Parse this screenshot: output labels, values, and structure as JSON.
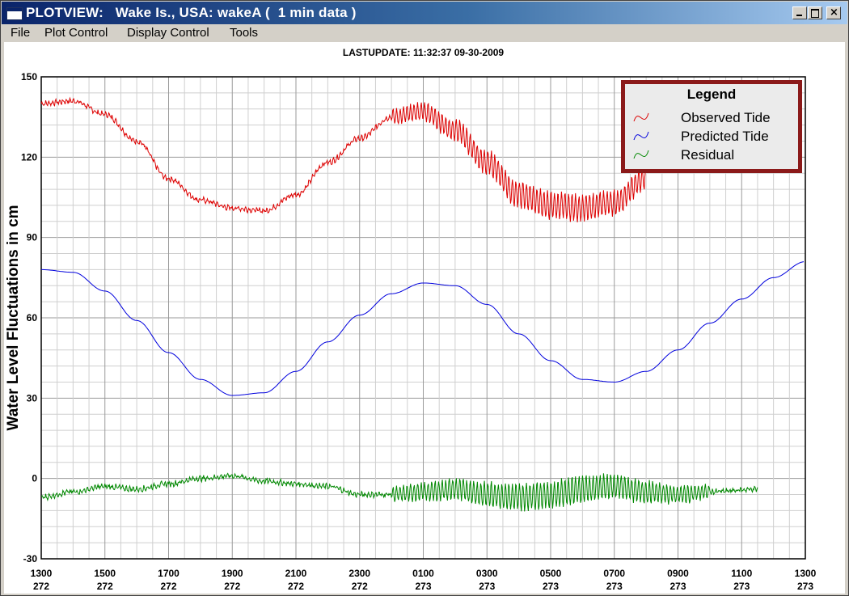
{
  "window": {
    "title": "PLOTVIEW:   Wake Is., USA: wakeA (  1 min data )",
    "controls": [
      "minimize-icon",
      "maximize-icon",
      "close-icon"
    ]
  },
  "menu": {
    "items": [
      "File",
      "Plot Control",
      "Display Control",
      "Tools"
    ]
  },
  "colors": {
    "observed": "#dd0000",
    "predicted": "#0000dd",
    "residual": "#008800",
    "legend_border": "#8b1a1a"
  },
  "chart_data": {
    "type": "line",
    "title": "LASTUPDATE: 11:32:37  09-30-2009",
    "ylabel": "Water Level Fluctuations in cm",
    "xlabel": "",
    "ylim": [
      -30,
      150
    ],
    "yticks": [
      -30,
      0,
      30,
      60,
      90,
      120,
      150
    ],
    "xlim": [
      0,
      24
    ],
    "xticks": [
      {
        "hour": "1300",
        "day": "272"
      },
      {
        "hour": "1500",
        "day": "272"
      },
      {
        "hour": "1700",
        "day": "272"
      },
      {
        "hour": "1900",
        "day": "272"
      },
      {
        "hour": "2100",
        "day": "272"
      },
      {
        "hour": "2300",
        "day": "272"
      },
      {
        "hour": "0100",
        "day": "273"
      },
      {
        "hour": "0300",
        "day": "273"
      },
      {
        "hour": "0500",
        "day": "273"
      },
      {
        "hour": "0700",
        "day": "273"
      },
      {
        "hour": "0900",
        "day": "273"
      },
      {
        "hour": "1100",
        "day": "273"
      },
      {
        "hour": "1300",
        "day": "273"
      }
    ],
    "legend": {
      "title": "Legend",
      "placement": "top-right"
    },
    "series": [
      {
        "name": "Observed Tide",
        "x": [
          0,
          1,
          2,
          3,
          4,
          5,
          6,
          7,
          8,
          9,
          10,
          11,
          12,
          13,
          14,
          15,
          16,
          17,
          18,
          19,
          20,
          21,
          22.5
        ],
        "values": [
          140,
          141,
          136,
          126,
          112,
          104,
          101,
          100,
          106,
          118,
          127,
          135,
          137,
          130,
          118,
          106,
          102,
          101,
          103,
          112,
          null,
          null,
          null
        ]
      },
      {
        "name": "Predicted Tide",
        "x": [
          0,
          1,
          2,
          3,
          4,
          5,
          6,
          7,
          8,
          9,
          10,
          11,
          12,
          13,
          14,
          15,
          16,
          17,
          18,
          19,
          20,
          21,
          22,
          23,
          24
        ],
        "values": [
          78,
          77,
          70,
          59,
          47,
          37,
          31,
          32,
          40,
          51,
          61,
          69,
          73,
          72,
          65,
          54,
          44,
          37,
          36,
          40,
          48,
          58,
          67,
          75,
          81
        ]
      },
      {
        "name": "Residual",
        "x": [
          0,
          1,
          2,
          3,
          4,
          5,
          6,
          7,
          8,
          9,
          10,
          11,
          12,
          13,
          14,
          15,
          16,
          17,
          18,
          19,
          20,
          21,
          22.5
        ],
        "values": [
          -7,
          -5,
          -3,
          -4,
          -2,
          0,
          1,
          -1,
          -2,
          -3,
          -6,
          -6,
          -5,
          -4,
          -6,
          -7,
          -6,
          -4,
          -3,
          -5,
          -6,
          -5,
          -4
        ]
      }
    ]
  }
}
